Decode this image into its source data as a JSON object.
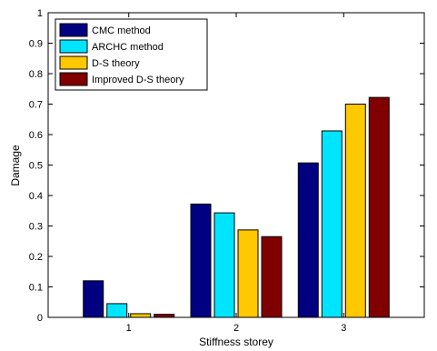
{
  "chart_data": {
    "type": "bar",
    "title": "",
    "xlabel": "Stiffness storey",
    "ylabel": "Damage",
    "categories": [
      "1",
      "2",
      "3"
    ],
    "ylim": [
      0,
      1
    ],
    "yticks": [
      "0",
      "0.1",
      "0.2",
      "0.3",
      "0.4",
      "0.5",
      "0.6",
      "0.7",
      "0.8",
      "0.9",
      "1"
    ],
    "legend_position": "top-left",
    "grid": false,
    "series": [
      {
        "name": "CMC method",
        "color": "#000080",
        "values": [
          0.12,
          0.372,
          0.507
        ]
      },
      {
        "name": "ARCHC method",
        "color": "#00E5FF",
        "values": [
          0.045,
          0.343,
          0.612
        ]
      },
      {
        "name": "D-S theory",
        "color": "#FFC800",
        "values": [
          0.012,
          0.287,
          0.7
        ]
      },
      {
        "name": "Improved D-S theory",
        "color": "#800000",
        "values": [
          0.01,
          0.265,
          0.722
        ]
      }
    ]
  }
}
